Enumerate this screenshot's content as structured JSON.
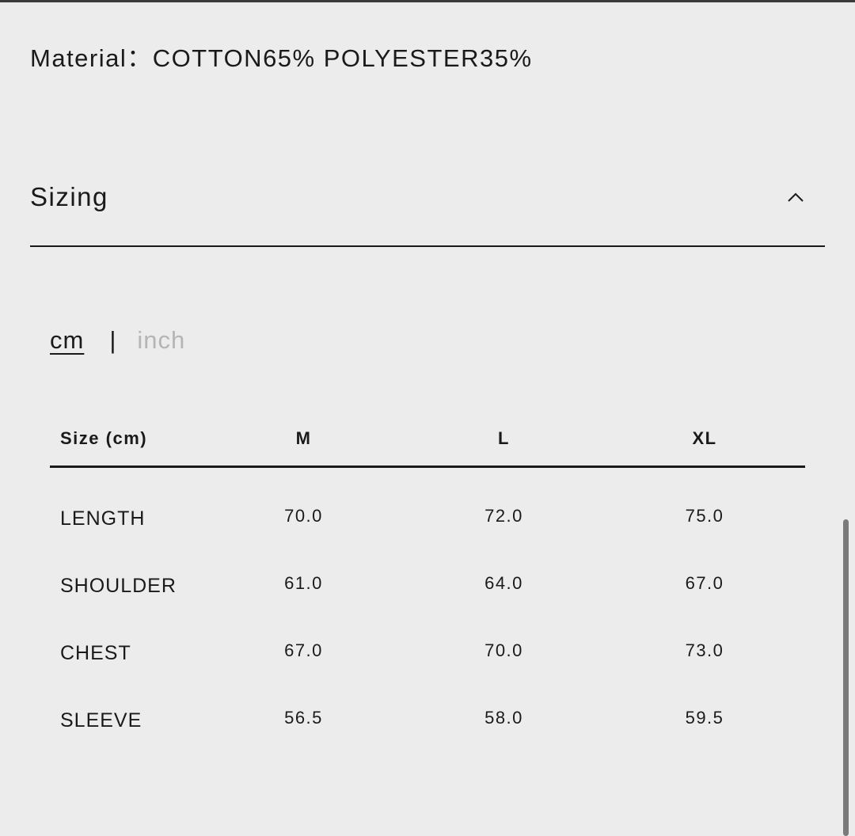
{
  "material": "Material：COTTON65% POLYESTER35%",
  "sizing": {
    "title": "Sizing",
    "expanded": true,
    "toggle_icon": "chevron-up-icon"
  },
  "units": {
    "cm": "cm",
    "separator": "|",
    "inch": "inch",
    "selected": "cm"
  },
  "table": {
    "headers": [
      "Size (cm)",
      "M",
      "L",
      "XL"
    ],
    "rows": [
      {
        "label": "LENGTH",
        "values": [
          "70.0",
          "72.0",
          "75.0"
        ]
      },
      {
        "label": "SHOULDER",
        "values": [
          "61.0",
          "64.0",
          "67.0"
        ]
      },
      {
        "label": "CHEST",
        "values": [
          "67.0",
          "70.0",
          "73.0"
        ]
      },
      {
        "label": "SLEEVE",
        "values": [
          "56.5",
          "58.0",
          "59.5"
        ]
      }
    ]
  }
}
